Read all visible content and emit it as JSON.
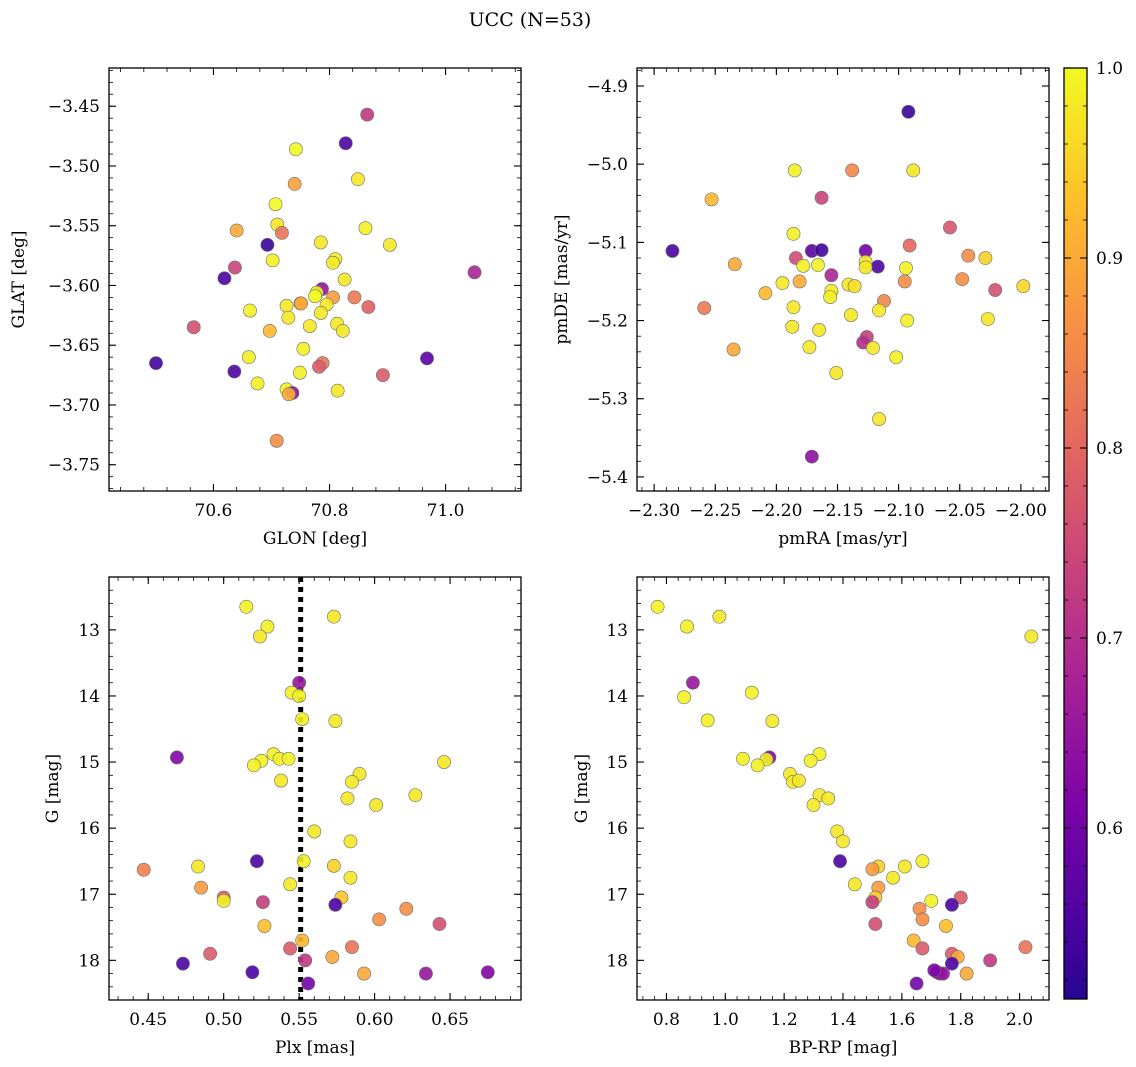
{
  "figure": {
    "suptitle": "UCC (N=53)"
  },
  "colorbar": {
    "colormap": "plasma",
    "range": [
      0.51,
      1.0
    ],
    "ticks": [
      0.6,
      0.7,
      0.8,
      0.9,
      1.0
    ],
    "ticklabels": [
      "0.6",
      "0.7",
      "0.8",
      "0.9",
      "1.0"
    ]
  },
  "chart_data": [
    {
      "type": "scatter",
      "xlabel": "GLON [deg]",
      "ylabel": "GLAT [deg]",
      "xlim": [
        70.42,
        71.13
      ],
      "ylim": [
        -3.772,
        -3.418
      ],
      "xticks": [
        70.6,
        70.8,
        71.0
      ],
      "xticklabels": [
        "70.6",
        "70.8",
        "71.0"
      ],
      "yticks": [
        -3.45,
        -3.5,
        -3.55,
        -3.6,
        -3.65,
        -3.7,
        -3.75
      ],
      "yticklabels": [
        "−3.45",
        "−3.50",
        "−3.55",
        "−3.60",
        "−3.65",
        "−3.70",
        "−3.75"
      ],
      "invert_y": false,
      "points": [
        [
          70.865,
          -3.457,
          0.72
        ],
        [
          70.828,
          -3.481,
          0.55
        ],
        [
          70.742,
          -3.486,
          1.0
        ],
        [
          70.849,
          -3.511,
          0.98
        ],
        [
          70.74,
          -3.515,
          0.89
        ],
        [
          70.707,
          -3.532,
          1.0
        ],
        [
          70.71,
          -3.549,
          0.98
        ],
        [
          70.64,
          -3.554,
          0.9
        ],
        [
          70.718,
          -3.556,
          0.82
        ],
        [
          70.862,
          -3.552,
          0.99
        ],
        [
          70.904,
          -3.566,
          0.98
        ],
        [
          70.693,
          -3.566,
          0.53
        ],
        [
          70.785,
          -3.564,
          0.98
        ],
        [
          70.702,
          -3.579,
          0.99
        ],
        [
          70.81,
          -3.578,
          0.99
        ],
        [
          70.806,
          -3.581,
          0.98
        ],
        [
          71.05,
          -3.589,
          0.68
        ],
        [
          70.637,
          -3.585,
          0.74
        ],
        [
          70.619,
          -3.594,
          0.55
        ],
        [
          70.826,
          -3.595,
          0.98
        ],
        [
          70.787,
          -3.603,
          0.65
        ],
        [
          70.778,
          -3.606,
          0.99
        ],
        [
          70.775,
          -3.609,
          1.0
        ],
        [
          70.806,
          -3.61,
          0.88
        ],
        [
          70.843,
          -3.61,
          0.83
        ],
        [
          70.75,
          -3.615,
          0.89
        ],
        [
          70.751,
          -3.615,
          0.9
        ],
        [
          70.795,
          -3.616,
          0.98
        ],
        [
          70.726,
          -3.617,
          0.98
        ],
        [
          70.663,
          -3.621,
          0.99
        ],
        [
          70.867,
          -3.618,
          0.79
        ],
        [
          70.785,
          -3.623,
          0.98
        ],
        [
          70.729,
          -3.627,
          0.98
        ],
        [
          70.566,
          -3.635,
          0.76
        ],
        [
          70.813,
          -3.632,
          0.98
        ],
        [
          70.766,
          -3.634,
          0.98
        ],
        [
          70.823,
          -3.638,
          0.98
        ],
        [
          70.697,
          -3.638,
          0.92
        ],
        [
          70.661,
          -3.66,
          0.99
        ],
        [
          70.755,
          -3.653,
          0.99
        ],
        [
          70.501,
          -3.665,
          0.54
        ],
        [
          70.968,
          -3.661,
          0.57
        ],
        [
          70.788,
          -3.665,
          0.82
        ],
        [
          70.782,
          -3.668,
          0.78
        ],
        [
          70.636,
          -3.672,
          0.55
        ],
        [
          70.749,
          -3.673,
          0.99
        ],
        [
          70.892,
          -3.675,
          0.78
        ],
        [
          70.676,
          -3.682,
          0.99
        ],
        [
          70.726,
          -3.687,
          0.99
        ],
        [
          70.814,
          -3.688,
          0.98
        ],
        [
          70.736,
          -3.69,
          0.64
        ],
        [
          70.73,
          -3.691,
          0.91
        ],
        [
          70.709,
          -3.73,
          0.86
        ]
      ]
    },
    {
      "type": "scatter",
      "xlabel": "pmRA [mas/yr]",
      "ylabel": "pmDE [mas/yr]",
      "xlim": [
        -2.314,
        -1.977
      ],
      "ylim": [
        -5.418,
        -4.877
      ],
      "xticks": [
        -2.3,
        -2.25,
        -2.2,
        -2.15,
        -2.1,
        -2.05,
        -2.0
      ],
      "xticklabels": [
        "−2.30",
        "−2.25",
        "−2.20",
        "−2.15",
        "−2.10",
        "−2.05",
        "−2.00"
      ],
      "yticks": [
        -4.9,
        -5.0,
        -5.1,
        -5.2,
        -5.3,
        -5.4
      ],
      "yticklabels": [
        "−4.9",
        "−5.0",
        "−5.1",
        "−5.2",
        "−5.3",
        "−5.4"
      ],
      "invert_y": false,
      "points": [
        [
          -2.092,
          -4.933,
          0.53
        ],
        [
          -2.185,
          -5.008,
          0.99
        ],
        [
          -2.088,
          -5.008,
          0.98
        ],
        [
          -2.138,
          -5.008,
          0.85
        ],
        [
          -2.253,
          -5.045,
          0.92
        ],
        [
          -2.163,
          -5.043,
          0.74
        ],
        [
          -2.058,
          -5.081,
          0.77
        ],
        [
          -2.285,
          -5.111,
          0.55
        ],
        [
          -2.186,
          -5.089,
          0.99
        ],
        [
          -2.091,
          -5.104,
          0.8
        ],
        [
          -2.171,
          -5.111,
          0.57
        ],
        [
          -2.163,
          -5.11,
          0.54
        ],
        [
          -2.127,
          -5.111,
          0.6
        ],
        [
          -2.043,
          -5.117,
          0.86
        ],
        [
          -2.029,
          -5.12,
          0.95
        ],
        [
          -2.184,
          -5.12,
          0.75
        ],
        [
          -2.234,
          -5.128,
          0.9
        ],
        [
          -2.166,
          -5.129,
          0.99
        ],
        [
          -2.117,
          -5.131,
          0.55
        ],
        [
          -2.127,
          -5.125,
          0.98
        ],
        [
          -2.127,
          -5.132,
          0.98
        ],
        [
          -2.178,
          -5.13,
          0.99
        ],
        [
          -2.094,
          -5.133,
          0.99
        ],
        [
          -2.155,
          -5.142,
          0.68
        ],
        [
          -2.048,
          -5.147,
          0.86
        ],
        [
          -2.181,
          -5.15,
          0.9
        ],
        [
          -2.095,
          -5.15,
          0.86
        ],
        [
          -2.195,
          -5.152,
          0.98
        ],
        [
          -2.141,
          -5.154,
          0.98
        ],
        [
          -2.136,
          -5.156,
          0.97
        ],
        [
          -1.998,
          -5.156,
          0.96
        ],
        [
          -2.021,
          -5.161,
          0.76
        ],
        [
          -2.155,
          -5.162,
          0.98
        ],
        [
          -2.209,
          -5.165,
          0.92
        ],
        [
          -2.156,
          -5.17,
          0.99
        ],
        [
          -2.112,
          -5.175,
          0.85
        ],
        [
          -2.259,
          -5.184,
          0.83
        ],
        [
          -2.186,
          -5.183,
          0.98
        ],
        [
          -2.116,
          -5.187,
          0.98
        ],
        [
          -2.027,
          -5.198,
          0.98
        ],
        [
          -2.139,
          -5.193,
          0.98
        ],
        [
          -2.093,
          -5.2,
          0.99
        ],
        [
          -2.187,
          -5.208,
          0.98
        ],
        [
          -2.165,
          -5.212,
          0.98
        ],
        [
          -2.126,
          -5.221,
          0.73
        ],
        [
          -2.129,
          -5.228,
          0.7
        ],
        [
          -2.121,
          -5.235,
          0.98
        ],
        [
          -2.173,
          -5.234,
          0.98
        ],
        [
          -2.235,
          -5.237,
          0.9
        ],
        [
          -2.102,
          -5.247,
          0.99
        ],
        [
          -2.151,
          -5.267,
          0.98
        ],
        [
          -2.116,
          -5.326,
          0.98
        ],
        [
          -2.171,
          -5.374,
          0.64
        ]
      ]
    },
    {
      "type": "scatter",
      "xlabel": "Plx [mas]",
      "ylabel": "G [mag]",
      "xlim": [
        0.424,
        0.697
      ],
      "ylim": [
        18.6,
        12.2
      ],
      "xticks": [
        0.45,
        0.5,
        0.55,
        0.6,
        0.65
      ],
      "xticklabels": [
        "0.45",
        "0.50",
        "0.55",
        "0.60",
        "0.65"
      ],
      "yticks": [
        13,
        14,
        15,
        16,
        17,
        18
      ],
      "yticklabels": [
        "13",
        "14",
        "15",
        "16",
        "17",
        "18"
      ],
      "invert_y": true,
      "vline": {
        "x": 0.551,
        "style": "dotted",
        "color": "#000000"
      },
      "points": [
        [
          0.515,
          12.65,
          0.99
        ],
        [
          0.573,
          12.8,
          0.98
        ],
        [
          0.529,
          12.95,
          0.99
        ],
        [
          0.524,
          13.1,
          0.98
        ],
        [
          0.55,
          13.8,
          0.65
        ],
        [
          0.545,
          13.95,
          0.99
        ],
        [
          0.55,
          14.0,
          0.99
        ],
        [
          0.552,
          14.35,
          0.99
        ],
        [
          0.574,
          14.38,
          0.98
        ],
        [
          0.469,
          14.93,
          0.62
        ],
        [
          0.533,
          14.88,
          0.99
        ],
        [
          0.537,
          14.95,
          0.99
        ],
        [
          0.543,
          14.95,
          0.99
        ],
        [
          0.525,
          14.98,
          0.99
        ],
        [
          0.646,
          15.0,
          0.98
        ],
        [
          0.52,
          15.05,
          0.99
        ],
        [
          0.59,
          15.18,
          0.98
        ],
        [
          0.585,
          15.3,
          0.98
        ],
        [
          0.538,
          15.28,
          0.98
        ],
        [
          0.627,
          15.5,
          0.98
        ],
        [
          0.582,
          15.55,
          0.98
        ],
        [
          0.601,
          15.65,
          0.98
        ],
        [
          0.56,
          16.05,
          0.98
        ],
        [
          0.584,
          16.2,
          0.98
        ],
        [
          0.553,
          16.5,
          0.99
        ],
        [
          0.522,
          16.5,
          0.55
        ],
        [
          0.573,
          16.57,
          0.95
        ],
        [
          0.483,
          16.58,
          0.98
        ],
        [
          0.447,
          16.63,
          0.84
        ],
        [
          0.584,
          16.75,
          0.98
        ],
        [
          0.544,
          16.85,
          0.98
        ],
        [
          0.485,
          16.9,
          0.88
        ],
        [
          0.5,
          17.05,
          0.78
        ],
        [
          0.578,
          17.05,
          0.94
        ],
        [
          0.5,
          17.1,
          0.99
        ],
        [
          0.526,
          17.12,
          0.73
        ],
        [
          0.574,
          17.16,
          0.55
        ],
        [
          0.621,
          17.22,
          0.86
        ],
        [
          0.603,
          17.38,
          0.86
        ],
        [
          0.643,
          17.45,
          0.76
        ],
        [
          0.527,
          17.48,
          0.93
        ],
        [
          0.552,
          17.7,
          0.92
        ],
        [
          0.544,
          17.82,
          0.78
        ],
        [
          0.585,
          17.8,
          0.82
        ],
        [
          0.491,
          17.9,
          0.78
        ],
        [
          0.572,
          17.95,
          0.9
        ],
        [
          0.554,
          18.0,
          0.72
        ],
        [
          0.473,
          18.05,
          0.55
        ],
        [
          0.519,
          18.18,
          0.55
        ],
        [
          0.593,
          18.2,
          0.9
        ],
        [
          0.634,
          18.2,
          0.65
        ],
        [
          0.675,
          18.18,
          0.62
        ],
        [
          0.556,
          18.35,
          0.6
        ]
      ]
    },
    {
      "type": "scatter",
      "xlabel": "BP-RP [mag]",
      "ylabel": "G [mag]",
      "xlim": [
        0.7,
        2.1
      ],
      "ylim": [
        18.6,
        12.2
      ],
      "xticks": [
        0.8,
        1.0,
        1.2,
        1.4,
        1.6,
        1.8,
        2.0
      ],
      "xticklabels": [
        "0.8",
        "1.0",
        "1.2",
        "1.4",
        "1.6",
        "1.8",
        "2.0"
      ],
      "yticks": [
        13,
        14,
        15,
        16,
        17,
        18
      ],
      "yticklabels": [
        "13",
        "14",
        "15",
        "16",
        "17",
        "18"
      ],
      "invert_y": true,
      "points": [
        [
          0.77,
          12.65,
          0.99
        ],
        [
          0.87,
          12.95,
          0.99
        ],
        [
          0.98,
          12.8,
          0.98
        ],
        [
          2.04,
          13.1,
          0.98
        ],
        [
          0.89,
          13.8,
          0.65
        ],
        [
          0.86,
          14.02,
          0.99
        ],
        [
          1.09,
          13.95,
          0.99
        ],
        [
          0.94,
          14.37,
          0.99
        ],
        [
          1.16,
          14.38,
          0.98
        ],
        [
          1.15,
          14.93,
          0.62
        ],
        [
          1.14,
          14.96,
          0.99
        ],
        [
          1.06,
          14.95,
          0.99
        ],
        [
          1.11,
          15.05,
          0.99
        ],
        [
          1.32,
          14.88,
          0.99
        ],
        [
          1.29,
          14.98,
          0.99
        ],
        [
          1.22,
          15.18,
          0.98
        ],
        [
          1.23,
          15.3,
          0.98
        ],
        [
          1.25,
          15.28,
          0.98
        ],
        [
          1.32,
          15.5,
          0.98
        ],
        [
          1.35,
          15.55,
          0.98
        ],
        [
          1.3,
          15.65,
          0.98
        ],
        [
          1.38,
          16.05,
          0.98
        ],
        [
          1.4,
          16.2,
          0.98
        ],
        [
          1.39,
          16.5,
          0.55
        ],
        [
          1.67,
          16.5,
          0.99
        ],
        [
          1.52,
          16.58,
          0.95
        ],
        [
          1.61,
          16.58,
          0.98
        ],
        [
          1.5,
          16.62,
          0.88
        ],
        [
          1.57,
          16.75,
          0.98
        ],
        [
          1.44,
          16.85,
          0.98
        ],
        [
          1.52,
          16.9,
          0.88
        ],
        [
          1.8,
          17.05,
          0.78
        ],
        [
          1.51,
          17.05,
          0.94
        ],
        [
          1.5,
          17.12,
          0.73
        ],
        [
          1.7,
          17.1,
          0.99
        ],
        [
          1.77,
          17.16,
          0.55
        ],
        [
          1.66,
          17.22,
          0.86
        ],
        [
          1.67,
          17.38,
          0.86
        ],
        [
          1.75,
          17.48,
          0.93
        ],
        [
          1.51,
          17.45,
          0.76
        ],
        [
          1.64,
          17.7,
          0.92
        ],
        [
          1.67,
          17.82,
          0.78
        ],
        [
          2.02,
          17.8,
          0.82
        ],
        [
          1.77,
          17.9,
          0.78
        ],
        [
          1.79,
          17.95,
          0.9
        ],
        [
          1.9,
          18.0,
          0.72
        ],
        [
          1.77,
          18.05,
          0.55
        ],
        [
          1.72,
          18.18,
          0.55
        ],
        [
          1.73,
          18.2,
          0.62
        ],
        [
          1.82,
          18.2,
          0.9
        ],
        [
          1.74,
          18.2,
          0.65
        ],
        [
          1.71,
          18.15,
          0.62
        ],
        [
          1.65,
          18.35,
          0.6
        ]
      ]
    }
  ]
}
